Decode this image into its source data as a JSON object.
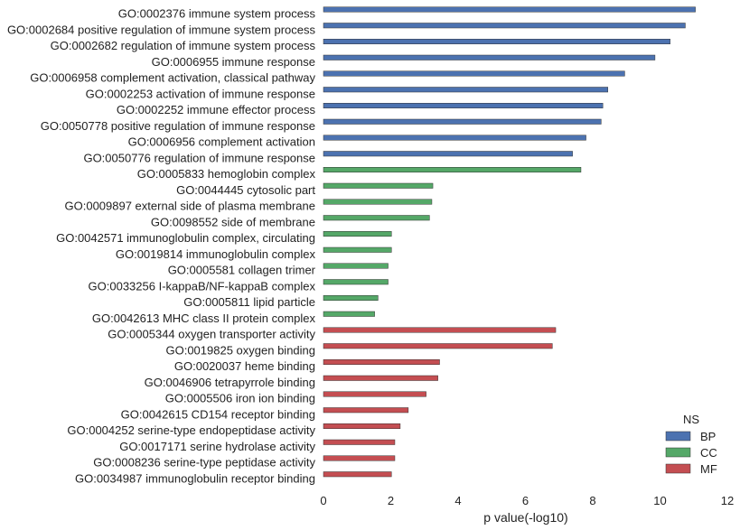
{
  "chart_data": {
    "type": "bar",
    "orientation": "horizontal",
    "xlabel": "p value(-log10)",
    "ylabel": "",
    "xlim": [
      0,
      12
    ],
    "xticks": [
      0,
      2,
      4,
      6,
      8,
      10,
      12
    ],
    "grid": false,
    "legend": {
      "title": "NS",
      "placement": "bottom-right",
      "entries": [
        {
          "name": "BP",
          "color": "#4c72b0"
        },
        {
          "name": "CC",
          "color": "#55a868"
        },
        {
          "name": "MF",
          "color": "#c44e52"
        }
      ]
    },
    "bars": [
      {
        "label": "GO:0002376 immune system process",
        "value": 11.05,
        "group": "BP"
      },
      {
        "label": "GO:0002684 positive regulation of immune system process",
        "value": 10.75,
        "group": "BP"
      },
      {
        "label": "GO:0002682 regulation of immune system process",
        "value": 10.3,
        "group": "BP"
      },
      {
        "label": "GO:0006955 immune response",
        "value": 9.85,
        "group": "BP"
      },
      {
        "label": "GO:0006958 complement activation, classical pathway",
        "value": 8.95,
        "group": "BP"
      },
      {
        "label": "GO:0002253 activation of immune response",
        "value": 8.45,
        "group": "BP"
      },
      {
        "label": "GO:0002252 immune effector process",
        "value": 8.3,
        "group": "BP"
      },
      {
        "label": "GO:0050778 positive regulation of immune response",
        "value": 8.25,
        "group": "BP"
      },
      {
        "label": "GO:0006956 complement activation",
        "value": 7.8,
        "group": "BP"
      },
      {
        "label": "GO:0050776 regulation of immune response",
        "value": 7.4,
        "group": "BP"
      },
      {
        "label": "GO:0005833 hemoglobin complex",
        "value": 7.65,
        "group": "CC"
      },
      {
        "label": "GO:0044445 cytosolic part",
        "value": 3.25,
        "group": "CC"
      },
      {
        "label": "GO:0009897 external side of plasma membrane",
        "value": 3.22,
        "group": "CC"
      },
      {
        "label": "GO:0098552 side of membrane",
        "value": 3.15,
        "group": "CC"
      },
      {
        "label": "GO:0042571 immunoglobulin complex, circulating",
        "value": 2.02,
        "group": "CC"
      },
      {
        "label": "GO:0019814 immunoglobulin complex",
        "value": 2.02,
        "group": "CC"
      },
      {
        "label": "GO:0005581 collagen trimer",
        "value": 1.92,
        "group": "CC"
      },
      {
        "label": "GO:0033256 I-kappaB/NF-kappaB complex",
        "value": 1.92,
        "group": "CC"
      },
      {
        "label": "GO:0005811 lipid particle",
        "value": 1.62,
        "group": "CC"
      },
      {
        "label": "GO:0042613 MHC class II protein complex",
        "value": 1.52,
        "group": "CC"
      },
      {
        "label": "GO:0005344 oxygen transporter activity",
        "value": 6.9,
        "group": "MF"
      },
      {
        "label": "GO:0019825 oxygen binding",
        "value": 6.8,
        "group": "MF"
      },
      {
        "label": "GO:0020037 heme binding",
        "value": 3.45,
        "group": "MF"
      },
      {
        "label": "GO:0046906 tetrapyrrole binding",
        "value": 3.4,
        "group": "MF"
      },
      {
        "label": "GO:0005506 iron ion binding",
        "value": 3.05,
        "group": "MF"
      },
      {
        "label": "GO:0042615 CD154 receptor binding",
        "value": 2.52,
        "group": "MF"
      },
      {
        "label": "GO:0004252 serine-type endopeptidase activity",
        "value": 2.28,
        "group": "MF"
      },
      {
        "label": "GO:0017171 serine hydrolase activity",
        "value": 2.12,
        "group": "MF"
      },
      {
        "label": "GO:0008236 serine-type peptidase activity",
        "value": 2.12,
        "group": "MF"
      },
      {
        "label": "GO:0034987 immunoglobulin receptor binding",
        "value": 2.02,
        "group": "MF"
      }
    ]
  }
}
